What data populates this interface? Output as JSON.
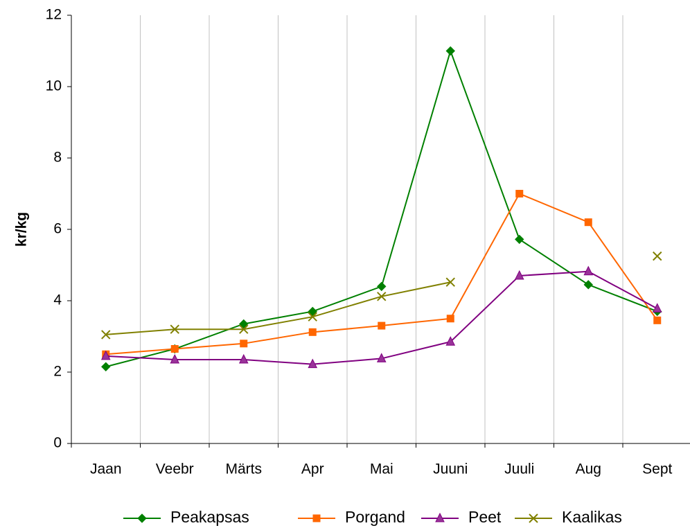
{
  "chart_data": {
    "type": "line",
    "y_label": "kr/kg",
    "categories": [
      "Jaan",
      "Veebr",
      "Märts",
      "Apr",
      "Mai",
      "Juuni",
      "Juuli",
      "Aug",
      "Sept"
    ],
    "series": [
      {
        "name": "Peakapsas",
        "color": "#008000",
        "marker": "diamond",
        "values": [
          2.15,
          2.65,
          3.35,
          3.7,
          4.4,
          11.0,
          5.72,
          4.45,
          3.7
        ]
      },
      {
        "name": "Porgand",
        "color": "#ff6600",
        "marker": "square",
        "values": [
          2.5,
          2.65,
          2.8,
          3.12,
          3.3,
          3.5,
          7.0,
          6.2,
          3.45
        ]
      },
      {
        "name": "Peet",
        "color": "#800080",
        "marker": "triangle",
        "values": [
          2.45,
          2.35,
          2.35,
          2.22,
          2.38,
          2.85,
          4.7,
          4.82,
          3.78
        ]
      },
      {
        "name": "Kaalikas",
        "color": "#808000",
        "marker": "x",
        "values": [
          3.05,
          3.2,
          3.2,
          3.55,
          4.12,
          4.52,
          null,
          null,
          5.25
        ]
      }
    ],
    "ylim": [
      0,
      12
    ],
    "yticks": [
      0,
      2,
      4,
      6,
      8,
      10,
      12
    ],
    "grid": "x",
    "legend": "bottom"
  }
}
